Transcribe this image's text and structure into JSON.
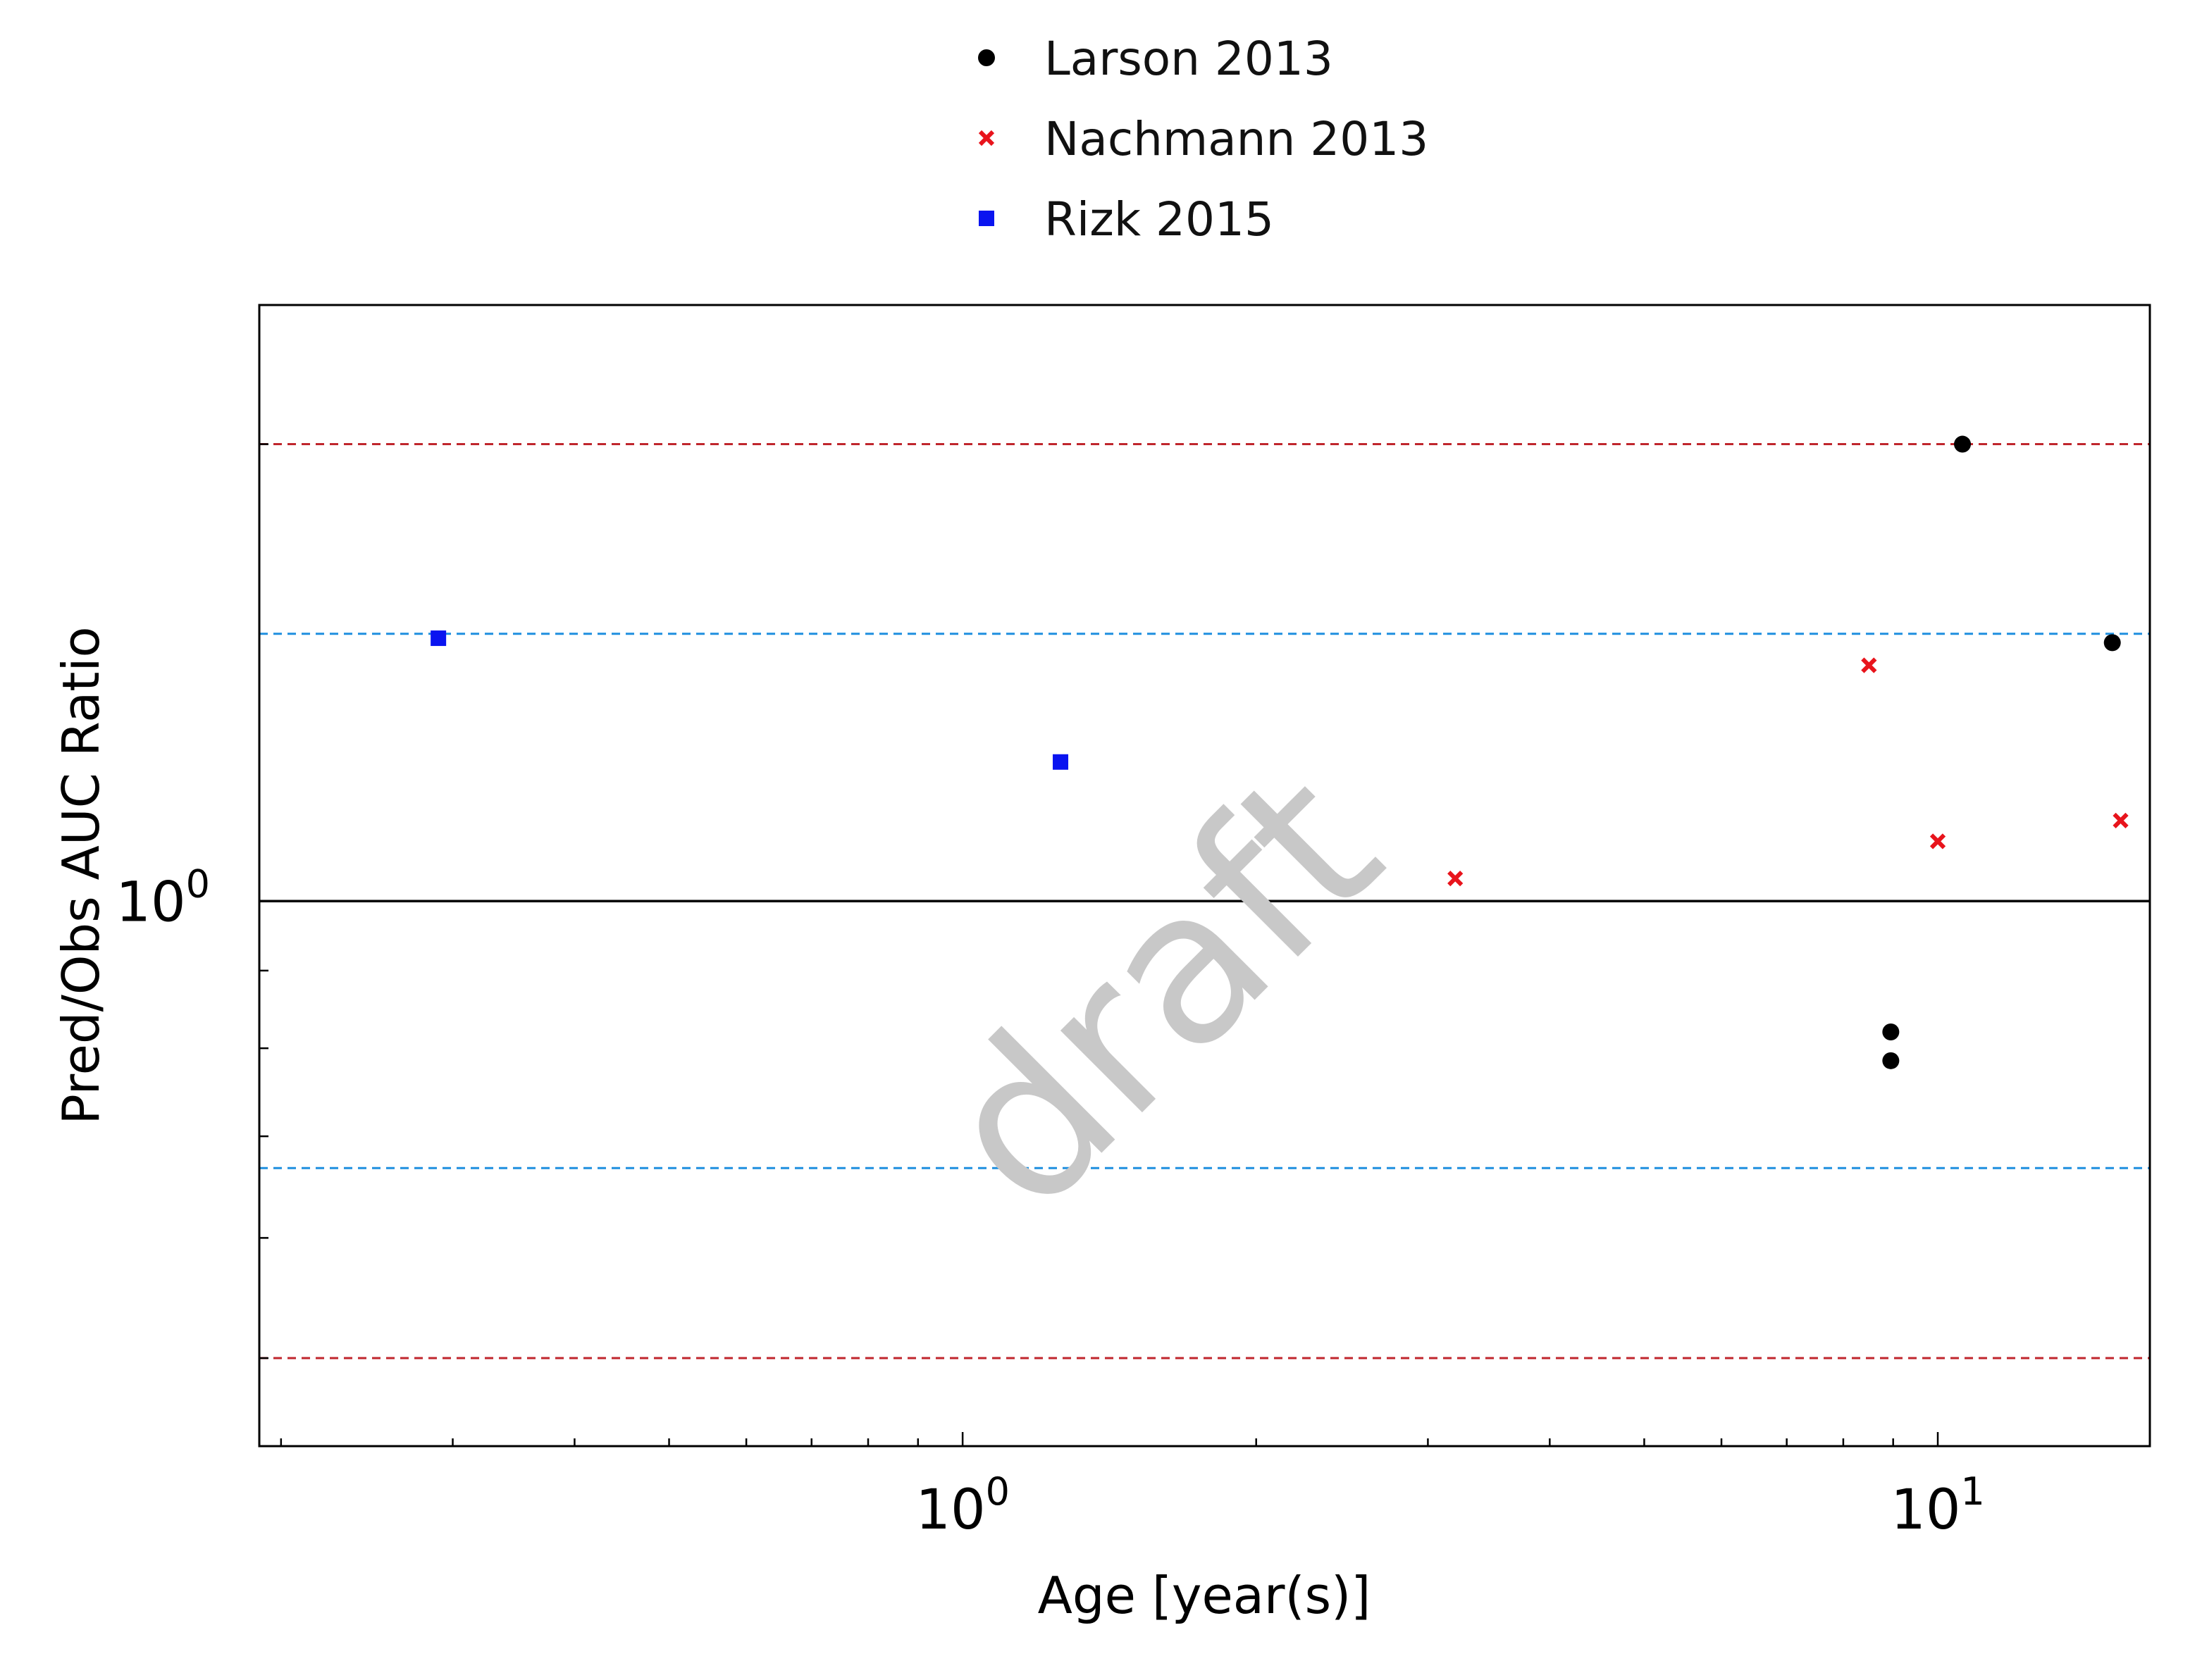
{
  "chart_data": {
    "type": "scatter",
    "title": "",
    "xlabel": "Age [year(s)]",
    "ylabel": "Pred/Obs AUC Ratio",
    "xscale": "log",
    "yscale": "log",
    "xlim": [
      0.19,
      16.5
    ],
    "ylim": [
      0.4375,
      2.47
    ],
    "x_ticks": [
      {
        "value": 1,
        "label_base": "10",
        "label_exp": "0"
      },
      {
        "value": 10,
        "label_base": "10",
        "label_exp": "1"
      }
    ],
    "y_ticks": [
      {
        "value": 1,
        "label_base": "10",
        "label_exp": "0"
      }
    ],
    "reference_lines": [
      {
        "y": 1,
        "color": "#000000",
        "style": "solid"
      },
      {
        "y": 1.5,
        "color": "#1f8fdf",
        "style": "dashed"
      },
      {
        "y": 0.667,
        "color": "#1f8fdf",
        "style": "dashed"
      },
      {
        "y": 2,
        "color": "#c0262d",
        "style": "dashed"
      },
      {
        "y": 0.5,
        "color": "#c0262d",
        "style": "dashed"
      }
    ],
    "legend_position": "top-center",
    "series": [
      {
        "name": "Larson 2013",
        "marker": "circle",
        "color": "#000000",
        "points": [
          {
            "x": 10.6,
            "y": 2.0
          },
          {
            "x": 15.1,
            "y": 1.48
          },
          {
            "x": 8.95,
            "y": 0.82
          },
          {
            "x": 8.95,
            "y": 0.785
          }
        ]
      },
      {
        "name": "Nachmann 2013",
        "marker": "x",
        "color": "#e8141c",
        "points": [
          {
            "x": 3.2,
            "y": 1.035
          },
          {
            "x": 8.5,
            "y": 1.43
          },
          {
            "x": 10.0,
            "y": 1.095
          },
          {
            "x": 15.4,
            "y": 1.13
          }
        ]
      },
      {
        "name": "Rizk 2015",
        "marker": "square",
        "color": "#0a14f0",
        "points": [
          {
            "x": 0.29,
            "y": 1.49
          },
          {
            "x": 1.26,
            "y": 1.235
          }
        ]
      }
    ],
    "watermark": "draft"
  }
}
